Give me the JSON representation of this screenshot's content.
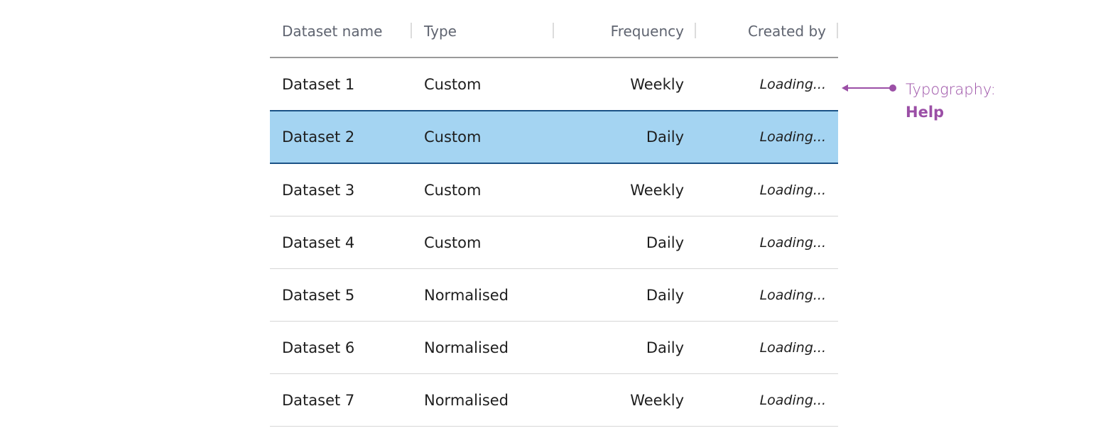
{
  "table": {
    "columns": [
      {
        "label": "Dataset name",
        "align": "left"
      },
      {
        "label": "Type",
        "align": "left"
      },
      {
        "label": "Frequency",
        "align": "right"
      },
      {
        "label": "Created by",
        "align": "right"
      }
    ],
    "rows": [
      {
        "name": "Dataset 1",
        "type": "Custom",
        "frequency": "Weekly",
        "created_by": "Loading...",
        "selected": false
      },
      {
        "name": "Dataset 2",
        "type": "Custom",
        "frequency": "Daily",
        "created_by": "Loading...",
        "selected": true
      },
      {
        "name": "Dataset 3",
        "type": "Custom",
        "frequency": "Weekly",
        "created_by": "Loading...",
        "selected": false
      },
      {
        "name": "Dataset 4",
        "type": "Custom",
        "frequency": "Daily",
        "created_by": "Loading...",
        "selected": false
      },
      {
        "name": "Dataset 5",
        "type": "Normalised",
        "frequency": "Daily",
        "created_by": "Loading...",
        "selected": false
      },
      {
        "name": "Dataset 6",
        "type": "Normalised",
        "frequency": "Daily",
        "created_by": "Loading...",
        "selected": false
      },
      {
        "name": "Dataset 7",
        "type": "Normalised",
        "frequency": "Weekly",
        "created_by": "Loading...",
        "selected": false
      }
    ]
  },
  "annotation": {
    "label": "Typography:",
    "value": "Help",
    "color": "#9b4fa6"
  },
  "colors": {
    "selected_bg": "#a4d4f2",
    "selected_border": "#1b5286"
  }
}
